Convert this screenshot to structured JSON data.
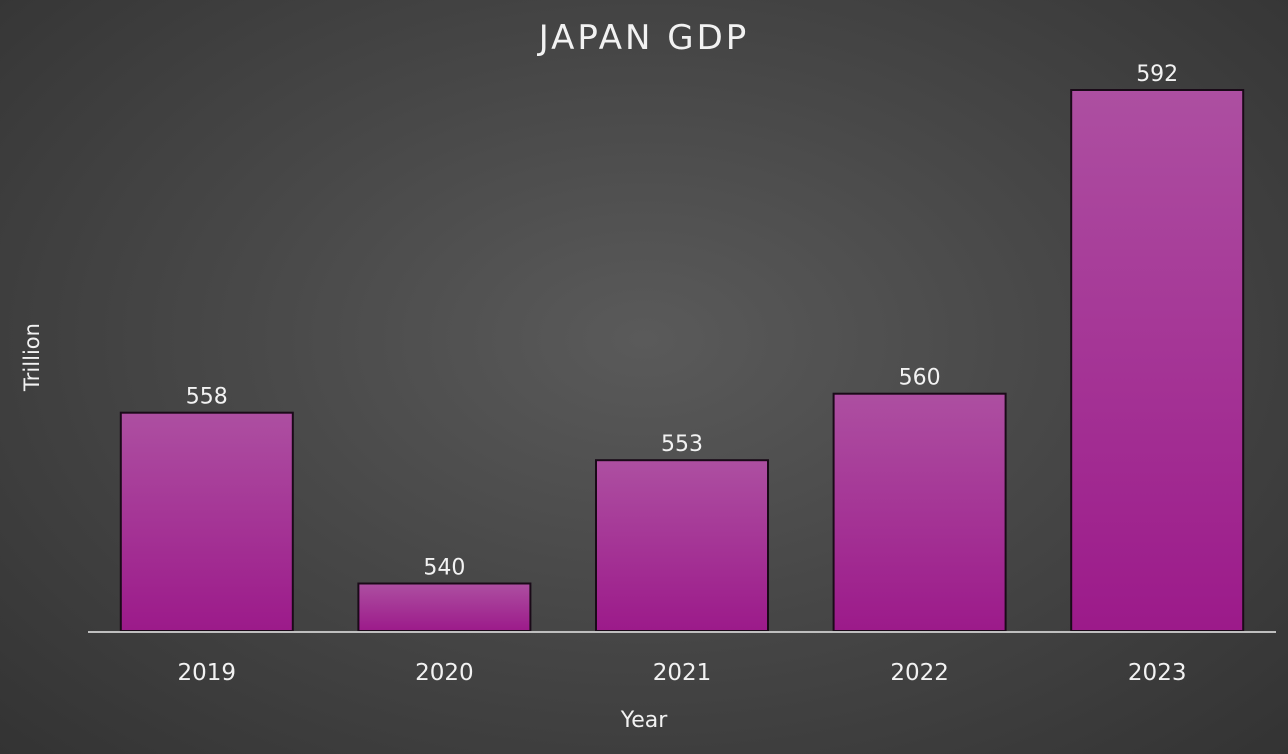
{
  "chart_data": {
    "type": "bar",
    "title": "JAPAN GDP",
    "xlabel": "Year",
    "ylabel": "Trillion",
    "categories": [
      "2019",
      "2020",
      "2021",
      "2022",
      "2023"
    ],
    "values": [
      558,
      540,
      553,
      560,
      592
    ],
    "data_labels": [
      "558",
      "540",
      "553",
      "560",
      "592"
    ],
    "ylim": [
      0,
      600
    ],
    "grid": false,
    "legend": "none",
    "colors": {
      "bar_top": "#ad4fa1",
      "bar_bottom": "#9c1a8a",
      "bar_outline": "#1a0a18",
      "axis_line": "#bfbfbf",
      "text": "#f2f2f2"
    }
  }
}
